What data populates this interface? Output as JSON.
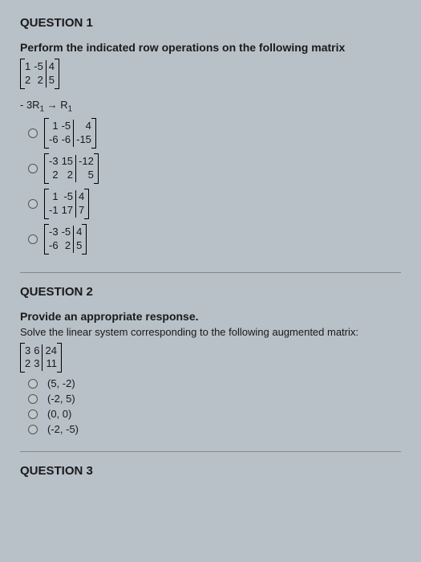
{
  "q1": {
    "title": "QUESTION 1",
    "prompt": "Perform the indicated row operations on the following matrix",
    "matrix": {
      "left": [
        [
          "1",
          "-5"
        ],
        [
          "2",
          " 2"
        ]
      ],
      "right": [
        [
          "4"
        ],
        [
          "5"
        ]
      ]
    },
    "operation_html": "- 3R<sub>1</sub> → R<sub>1</sub>",
    "options": [
      {
        "left": [
          [
            " 1",
            "-5"
          ],
          [
            "-6",
            "-6"
          ]
        ],
        "right": [
          [
            "  4"
          ],
          [
            "-15"
          ]
        ]
      },
      {
        "left": [
          [
            "-3",
            "15"
          ],
          [
            " 2",
            " 2"
          ]
        ],
        "right": [
          [
            "-12"
          ],
          [
            "  5"
          ]
        ]
      },
      {
        "left": [
          [
            " 1",
            "-5"
          ],
          [
            "-1",
            "17"
          ]
        ],
        "right": [
          [
            "4"
          ],
          [
            "7"
          ]
        ]
      },
      {
        "left": [
          [
            "-3",
            "-5"
          ],
          [
            "-6",
            " 2"
          ]
        ],
        "right": [
          [
            "4"
          ],
          [
            "5"
          ]
        ]
      }
    ]
  },
  "q2": {
    "title": "QUESTION 2",
    "prompt": "Provide an appropriate response.",
    "subprompt": "Solve the linear system corresponding to the following augmented matrix:",
    "matrix": {
      "left": [
        [
          "3",
          "6"
        ],
        [
          "2",
          "3"
        ]
      ],
      "right": [
        [
          "24"
        ],
        [
          "11"
        ]
      ]
    },
    "options": [
      "(5, -2)",
      "(-2, 5)",
      "(0, 0)",
      "(-2, -5)"
    ]
  },
  "q3": {
    "title": "QUESTION 3"
  },
  "colors": {
    "background": "#b8c0c8",
    "text": "#1a1a1a",
    "border": "#000000",
    "divider": "#888888",
    "radio_border": "#555555"
  }
}
